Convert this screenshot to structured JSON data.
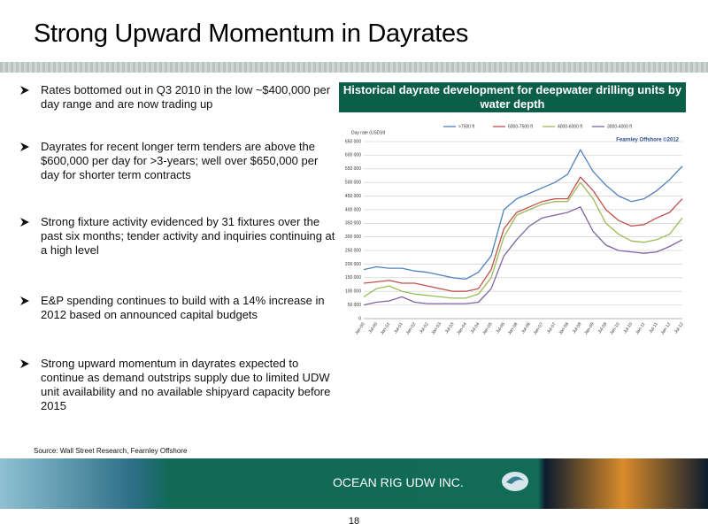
{
  "title": "Strong Upward Momentum in Dayrates",
  "bullets": [
    "Rates bottomed out in Q3 2010 in the low ~$400,000 per day range and are now trading up",
    "Dayrates for recent longer term tenders are above the $600,000 per day for >3-years; well over $650,000 per day for shorter term contracts",
    "Strong fixture activity evidenced by 31 fixtures over the past six months; tender activity and inquiries continuing at a high level",
    "E&P spending continues to build with a 14% increase in 2012 based on announced capital budgets",
    "Strong upward momentum in dayrates expected to continue as demand outstrips supply due to limited UDW unit availability and no available shipyard capacity before 2015"
  ],
  "source": "Source: Wall Street Research, Fearnley Offshore",
  "footer": {
    "company": "OCEAN RIG UDW INC.",
    "page": "18"
  },
  "chart_data": {
    "type": "line",
    "title": "Historical dayrate development for deepwater drilling units by water depth",
    "y_label": "Day rate (USD)/d",
    "watermark": "Fearnley Offshore ©2012",
    "categories": [
      "Jan-00",
      "Jul-00",
      "Jan-01",
      "Jul-01",
      "Jan-02",
      "Jul-02",
      "Jan-03",
      "Jul-03",
      "Jan-04",
      "Jul-04",
      "Jan-05",
      "Jul-05",
      "Jan-06",
      "Jul-06",
      "Jan-07",
      "Jul-07",
      "Jan-08",
      "Jul-08",
      "Jan-09",
      "Jul-09",
      "Jan-10",
      "Jul-10",
      "Jan-11",
      "Jul-11",
      "Jan-12",
      "Jul-12"
    ],
    "series": [
      {
        "name": ">7500 ft",
        "color": "#4f81bd",
        "values": [
          180000,
          190000,
          185000,
          185000,
          175000,
          170000,
          160000,
          150000,
          145000,
          170000,
          230000,
          400000,
          440000,
          460000,
          480000,
          500000,
          530000,
          620000,
          540000,
          490000,
          450000,
          430000,
          440000,
          470000,
          510000,
          560000
        ]
      },
      {
        "name": "6000-7500 ft",
        "color": "#c0504d",
        "values": [
          130000,
          135000,
          140000,
          130000,
          130000,
          120000,
          110000,
          100000,
          100000,
          110000,
          180000,
          330000,
          390000,
          410000,
          430000,
          440000,
          440000,
          520000,
          470000,
          400000,
          360000,
          340000,
          345000,
          370000,
          390000,
          440000
        ]
      },
      {
        "name": "4000-6000 ft",
        "color": "#9bbb59",
        "values": [
          80000,
          110000,
          120000,
          100000,
          90000,
          85000,
          80000,
          75000,
          75000,
          90000,
          150000,
          300000,
          380000,
          400000,
          420000,
          430000,
          430000,
          500000,
          440000,
          350000,
          310000,
          285000,
          280000,
          290000,
          310000,
          370000
        ]
      },
      {
        "name": "3000-4000 ft",
        "color": "#8064a2",
        "values": [
          50000,
          60000,
          65000,
          80000,
          60000,
          55000,
          55000,
          55000,
          55000,
          60000,
          110000,
          230000,
          290000,
          340000,
          370000,
          380000,
          390000,
          410000,
          320000,
          270000,
          250000,
          245000,
          240000,
          245000,
          265000,
          290000
        ]
      }
    ],
    "ylim": [
      0,
      650000
    ],
    "yticks": [
      0,
      {
        "value": 50000,
        "label": "50 000"
      },
      {
        "value": 100000,
        "label": "100 000"
      },
      {
        "value": 150000,
        "label": "150 000"
      },
      {
        "value": 200000,
        "label": "200 000"
      },
      {
        "value": 250000,
        "label": "250 000"
      },
      {
        "value": 300000,
        "label": "300 000"
      },
      {
        "value": 350000,
        "label": "350 000"
      },
      {
        "value": 400000,
        "label": "400 000"
      },
      {
        "value": 450000,
        "label": "450 000"
      },
      {
        "value": 500000,
        "label": "500 000"
      },
      {
        "value": 550000,
        "label": "550 000"
      },
      {
        "value": 600000,
        "label": "600 000"
      },
      {
        "value": 650000,
        "label": "650 000"
      }
    ],
    "grid": true
  }
}
